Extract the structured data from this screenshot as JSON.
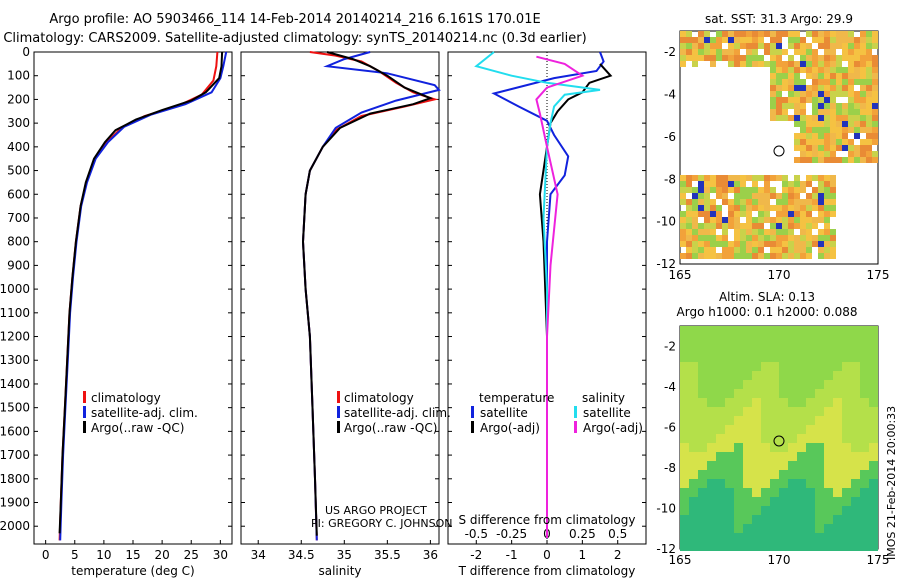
{
  "titles": {
    "line1": "Argo profile: AO 5903466_114 14-Feb-2014 20140214_216 6.161S 170.01E",
    "line2": "Climatology: CARS2009. Satellite-adjusted climatology: synTS_20140214.nc (0.3d earlier)"
  },
  "colors": {
    "clim": "#ee1111",
    "sat": "#1122dd",
    "argo": "#000000",
    "sat_s": "#22ddee",
    "argo_s": "#ee22dd"
  },
  "chart_data": [
    {
      "id": "temperature",
      "type": "line",
      "xlabel": "temperature (deg C)",
      "ylabel": "",
      "xlim": [
        -2,
        32
      ],
      "ylim": [
        2075,
        0
      ],
      "xticks": [
        0,
        5,
        10,
        15,
        20,
        25,
        30
      ],
      "yticks": [
        0,
        100,
        200,
        300,
        400,
        500,
        600,
        700,
        800,
        900,
        1000,
        1100,
        1200,
        1300,
        1400,
        1500,
        1600,
        1700,
        1800,
        1900,
        2000
      ],
      "legend": [
        "climatology",
        "satellite-adj. clim.",
        "Argo(..raw -QC)"
      ],
      "series": [
        {
          "name": "climatology",
          "color": "clim",
          "points": [
            [
              29.5,
              0
            ],
            [
              29.3,
              60
            ],
            [
              28.8,
              120
            ],
            [
              26.8,
              180
            ],
            [
              22.5,
              230
            ],
            [
              17,
              270
            ],
            [
              13,
              320
            ],
            [
              10.5,
              380
            ],
            [
              8.5,
              450
            ],
            [
              7,
              550
            ],
            [
              6,
              650
            ],
            [
              5.2,
              800
            ],
            [
              4.6,
              950
            ],
            [
              4.1,
              1100
            ],
            [
              3.7,
              1300
            ],
            [
              3.3,
              1500
            ],
            [
              2.9,
              1700
            ],
            [
              2.6,
              1900
            ],
            [
              2.4,
              2060
            ]
          ]
        },
        {
          "name": "satellite",
          "color": "sat",
          "points": [
            [
              31,
              0
            ],
            [
              30.5,
              60
            ],
            [
              30,
              110
            ],
            [
              28.5,
              170
            ],
            [
              24,
              220
            ],
            [
              18,
              265
            ],
            [
              13.5,
              315
            ],
            [
              10.7,
              380
            ],
            [
              8.6,
              450
            ],
            [
              7.1,
              550
            ],
            [
              6.1,
              650
            ],
            [
              5.3,
              800
            ],
            [
              4.7,
              950
            ],
            [
              4.2,
              1100
            ],
            [
              3.8,
              1300
            ],
            [
              3.4,
              1500
            ],
            [
              3,
              1700
            ],
            [
              2.7,
              1900
            ],
            [
              2.5,
              2060
            ]
          ]
        },
        {
          "name": "argo",
          "color": "argo",
          "points": [
            [
              30.3,
              0
            ],
            [
              30.2,
              60
            ],
            [
              29.8,
              110
            ],
            [
              27.5,
              170
            ],
            [
              25,
              205
            ],
            [
              20,
              245
            ],
            [
              15.5,
              285
            ],
            [
              12,
              330
            ],
            [
              10.2,
              380
            ],
            [
              8.3,
              450
            ],
            [
              6.9,
              550
            ],
            [
              6,
              650
            ],
            [
              5.2,
              800
            ],
            [
              4.6,
              950
            ],
            [
              4.1,
              1100
            ],
            [
              3.7,
              1300
            ],
            [
              3.3,
              1500
            ],
            [
              2.9,
              1700
            ],
            [
              2.6,
              1900
            ],
            [
              2.4,
              2030
            ]
          ]
        }
      ]
    },
    {
      "id": "salinity",
      "type": "line",
      "xlabel": "salinity",
      "xlim": [
        33.8,
        36.1
      ],
      "ylim": [
        2075,
        0
      ],
      "xticks": [
        34,
        34.5,
        35,
        35.5,
        36
      ],
      "legend": [
        "climatology",
        "satellite-adj. clim.",
        "Argo(..raw -QC)"
      ],
      "series": [
        {
          "name": "climatology",
          "color": "clim",
          "points": [
            [
              34.6,
              0
            ],
            [
              34.9,
              15
            ],
            [
              35.2,
              40
            ],
            [
              35.4,
              80
            ],
            [
              35.6,
              130
            ],
            [
              35.8,
              170
            ],
            [
              36.05,
              200
            ],
            [
              35.7,
              230
            ],
            [
              35.2,
              270
            ],
            [
              34.9,
              330
            ],
            [
              34.75,
              400
            ],
            [
              34.6,
              500
            ],
            [
              34.55,
              600
            ],
            [
              34.52,
              800
            ],
            [
              34.55,
              1000
            ],
            [
              34.6,
              1200
            ],
            [
              34.63,
              1500
            ],
            [
              34.66,
              1800
            ],
            [
              34.68,
              2060
            ]
          ]
        },
        {
          "name": "satellite",
          "color": "sat",
          "points": [
            [
              35.3,
              0
            ],
            [
              35,
              30
            ],
            [
              34.8,
              60
            ],
            [
              35.5,
              90
            ],
            [
              36.05,
              140
            ],
            [
              36.1,
              160
            ],
            [
              35.6,
              205
            ],
            [
              35.2,
              255
            ],
            [
              34.9,
              320
            ],
            [
              34.75,
              400
            ],
            [
              34.6,
              500
            ],
            [
              34.55,
              600
            ],
            [
              34.52,
              800
            ],
            [
              34.55,
              1000
            ],
            [
              34.6,
              1200
            ],
            [
              34.63,
              1500
            ],
            [
              34.66,
              1800
            ],
            [
              34.68,
              2060
            ]
          ]
        },
        {
          "name": "argo",
          "color": "argo",
          "points": [
            [
              34.8,
              0
            ],
            [
              35.1,
              30
            ],
            [
              35.3,
              60
            ],
            [
              35.5,
              100
            ],
            [
              35.7,
              150
            ],
            [
              36,
              195
            ],
            [
              35.8,
              220
            ],
            [
              35.3,
              260
            ],
            [
              34.95,
              320
            ],
            [
              34.75,
              400
            ],
            [
              34.6,
              500
            ],
            [
              34.55,
              600
            ],
            [
              34.52,
              800
            ],
            [
              34.55,
              1000
            ],
            [
              34.6,
              1200
            ],
            [
              34.63,
              1500
            ],
            [
              34.66,
              1800
            ],
            [
              34.68,
              2040
            ]
          ]
        }
      ]
    },
    {
      "id": "difference",
      "type": "line",
      "xlabel": "T difference from climatology",
      "xlabel_top": "S difference from climatology",
      "xlim": [
        -2.8,
        2.8
      ],
      "ylim": [
        2075,
        0
      ],
      "xticks": [
        -2,
        -1,
        0,
        1,
        2
      ],
      "xticks_top": [
        -0.5,
        -0.25,
        0,
        0.25,
        0.5
      ],
      "legend_temperature": [
        "temperature",
        "satellite",
        "Argo(-adj)"
      ],
      "legend_salinity": [
        "salinity",
        "satellite",
        "Argo(-adj)"
      ],
      "series": [
        {
          "name": "T satellite",
          "color": "sat",
          "points": [
            [
              1.5,
              0
            ],
            [
              1.6,
              40
            ],
            [
              1.4,
              80
            ],
            [
              0.2,
              110
            ],
            [
              -1.5,
              175
            ],
            [
              -0.8,
              230
            ],
            [
              0,
              290
            ],
            [
              0.2,
              350
            ],
            [
              0.6,
              440
            ],
            [
              0.5,
              520
            ],
            [
              0.1,
              600
            ],
            [
              0,
              800
            ],
            [
              0,
              1200
            ],
            [
              0,
              2050
            ]
          ]
        },
        {
          "name": "T argo",
          "color": "argo",
          "points": [
            [
              1.5,
              50
            ],
            [
              1.8,
              100
            ],
            [
              1.2,
              130
            ],
            [
              1,
              170
            ],
            [
              0.6,
              200
            ],
            [
              0.3,
              250
            ],
            [
              0.1,
              300
            ],
            [
              0,
              400
            ],
            [
              -0.2,
              600
            ],
            [
              -0.1,
              800
            ],
            [
              0,
              1200
            ],
            [
              0,
              2050
            ]
          ]
        },
        {
          "name": "S satellite",
          "color": "sat_s",
          "points": [
            [
              -1.5,
              0
            ],
            [
              -2,
              60
            ],
            [
              -1,
              100
            ],
            [
              0,
              130
            ],
            [
              1.5,
              160
            ],
            [
              0.5,
              180
            ],
            [
              0.2,
              230
            ],
            [
              0.1,
              300
            ],
            [
              0,
              400
            ],
            [
              -0.1,
              700
            ],
            [
              0,
              1000
            ],
            [
              0,
              2050
            ]
          ]
        },
        {
          "name": "S argo",
          "color": "argo_s",
          "points": [
            [
              -0.3,
              20
            ],
            [
              0.5,
              50
            ],
            [
              1,
              100
            ],
            [
              0,
              150
            ],
            [
              -0.3,
              200
            ],
            [
              -0.2,
              260
            ],
            [
              0,
              400
            ],
            [
              0.3,
              600
            ],
            [
              0.1,
              900
            ],
            [
              0,
              1200
            ],
            [
              0,
              2050
            ]
          ]
        }
      ]
    }
  ],
  "maps": {
    "sst": {
      "title": "sat. SST: 31.3 Argo: 29.9",
      "xticks": [
        165,
        170,
        175
      ],
      "yticks": [
        -2,
        -4,
        -6,
        -8,
        -10,
        -12
      ]
    },
    "sla": {
      "title1": "Altim. SLA: 0.13",
      "title2": "Argo h1000: 0.1 h2000: 0.088",
      "xticks": [
        165,
        170,
        175
      ],
      "yticks": [
        -2,
        -4,
        -6,
        -8,
        -10,
        -12
      ]
    }
  },
  "credits": {
    "project": "US ARGO PROJECT",
    "pi": "PI: GREGORY C. JOHNSON",
    "stamp": "IMOS 21-Feb-2014 20:00:33"
  }
}
